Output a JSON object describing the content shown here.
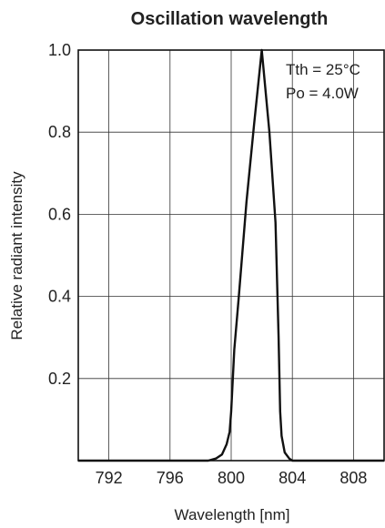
{
  "chart_data": {
    "type": "line",
    "title": "Oscillation wavelength",
    "xlabel": "Wavelength [nm]",
    "ylabel": "Relative radiant intensity",
    "xlim": [
      790,
      810
    ],
    "ylim": [
      0,
      1.0
    ],
    "x_ticks": [
      792,
      796,
      800,
      804,
      808
    ],
    "x_tick_labels": [
      "792",
      "796",
      "800",
      "804",
      "808"
    ],
    "y_ticks": [
      0.2,
      0.4,
      0.6,
      0.8,
      1.0
    ],
    "y_tick_labels": [
      "0.2",
      "0.4",
      "0.6",
      "0.8",
      "1.0"
    ],
    "grid": true,
    "annotations": [
      "Tth = 25°C",
      "Po = 4.0W"
    ],
    "series": [
      {
        "x": [
          790,
          798.5,
          799.0,
          799.4,
          799.7,
          799.9,
          800.0,
          800.2,
          800.5,
          801.0,
          801.5,
          802.0,
          802.5,
          802.9,
          803.1,
          803.2,
          803.3,
          803.5,
          803.8,
          804.0,
          810
        ],
        "y": [
          0,
          0,
          0.005,
          0.015,
          0.04,
          0.07,
          0.12,
          0.27,
          0.4,
          0.63,
          0.82,
          1.0,
          0.8,
          0.58,
          0.3,
          0.12,
          0.06,
          0.02,
          0.005,
          0,
          0
        ]
      }
    ]
  }
}
